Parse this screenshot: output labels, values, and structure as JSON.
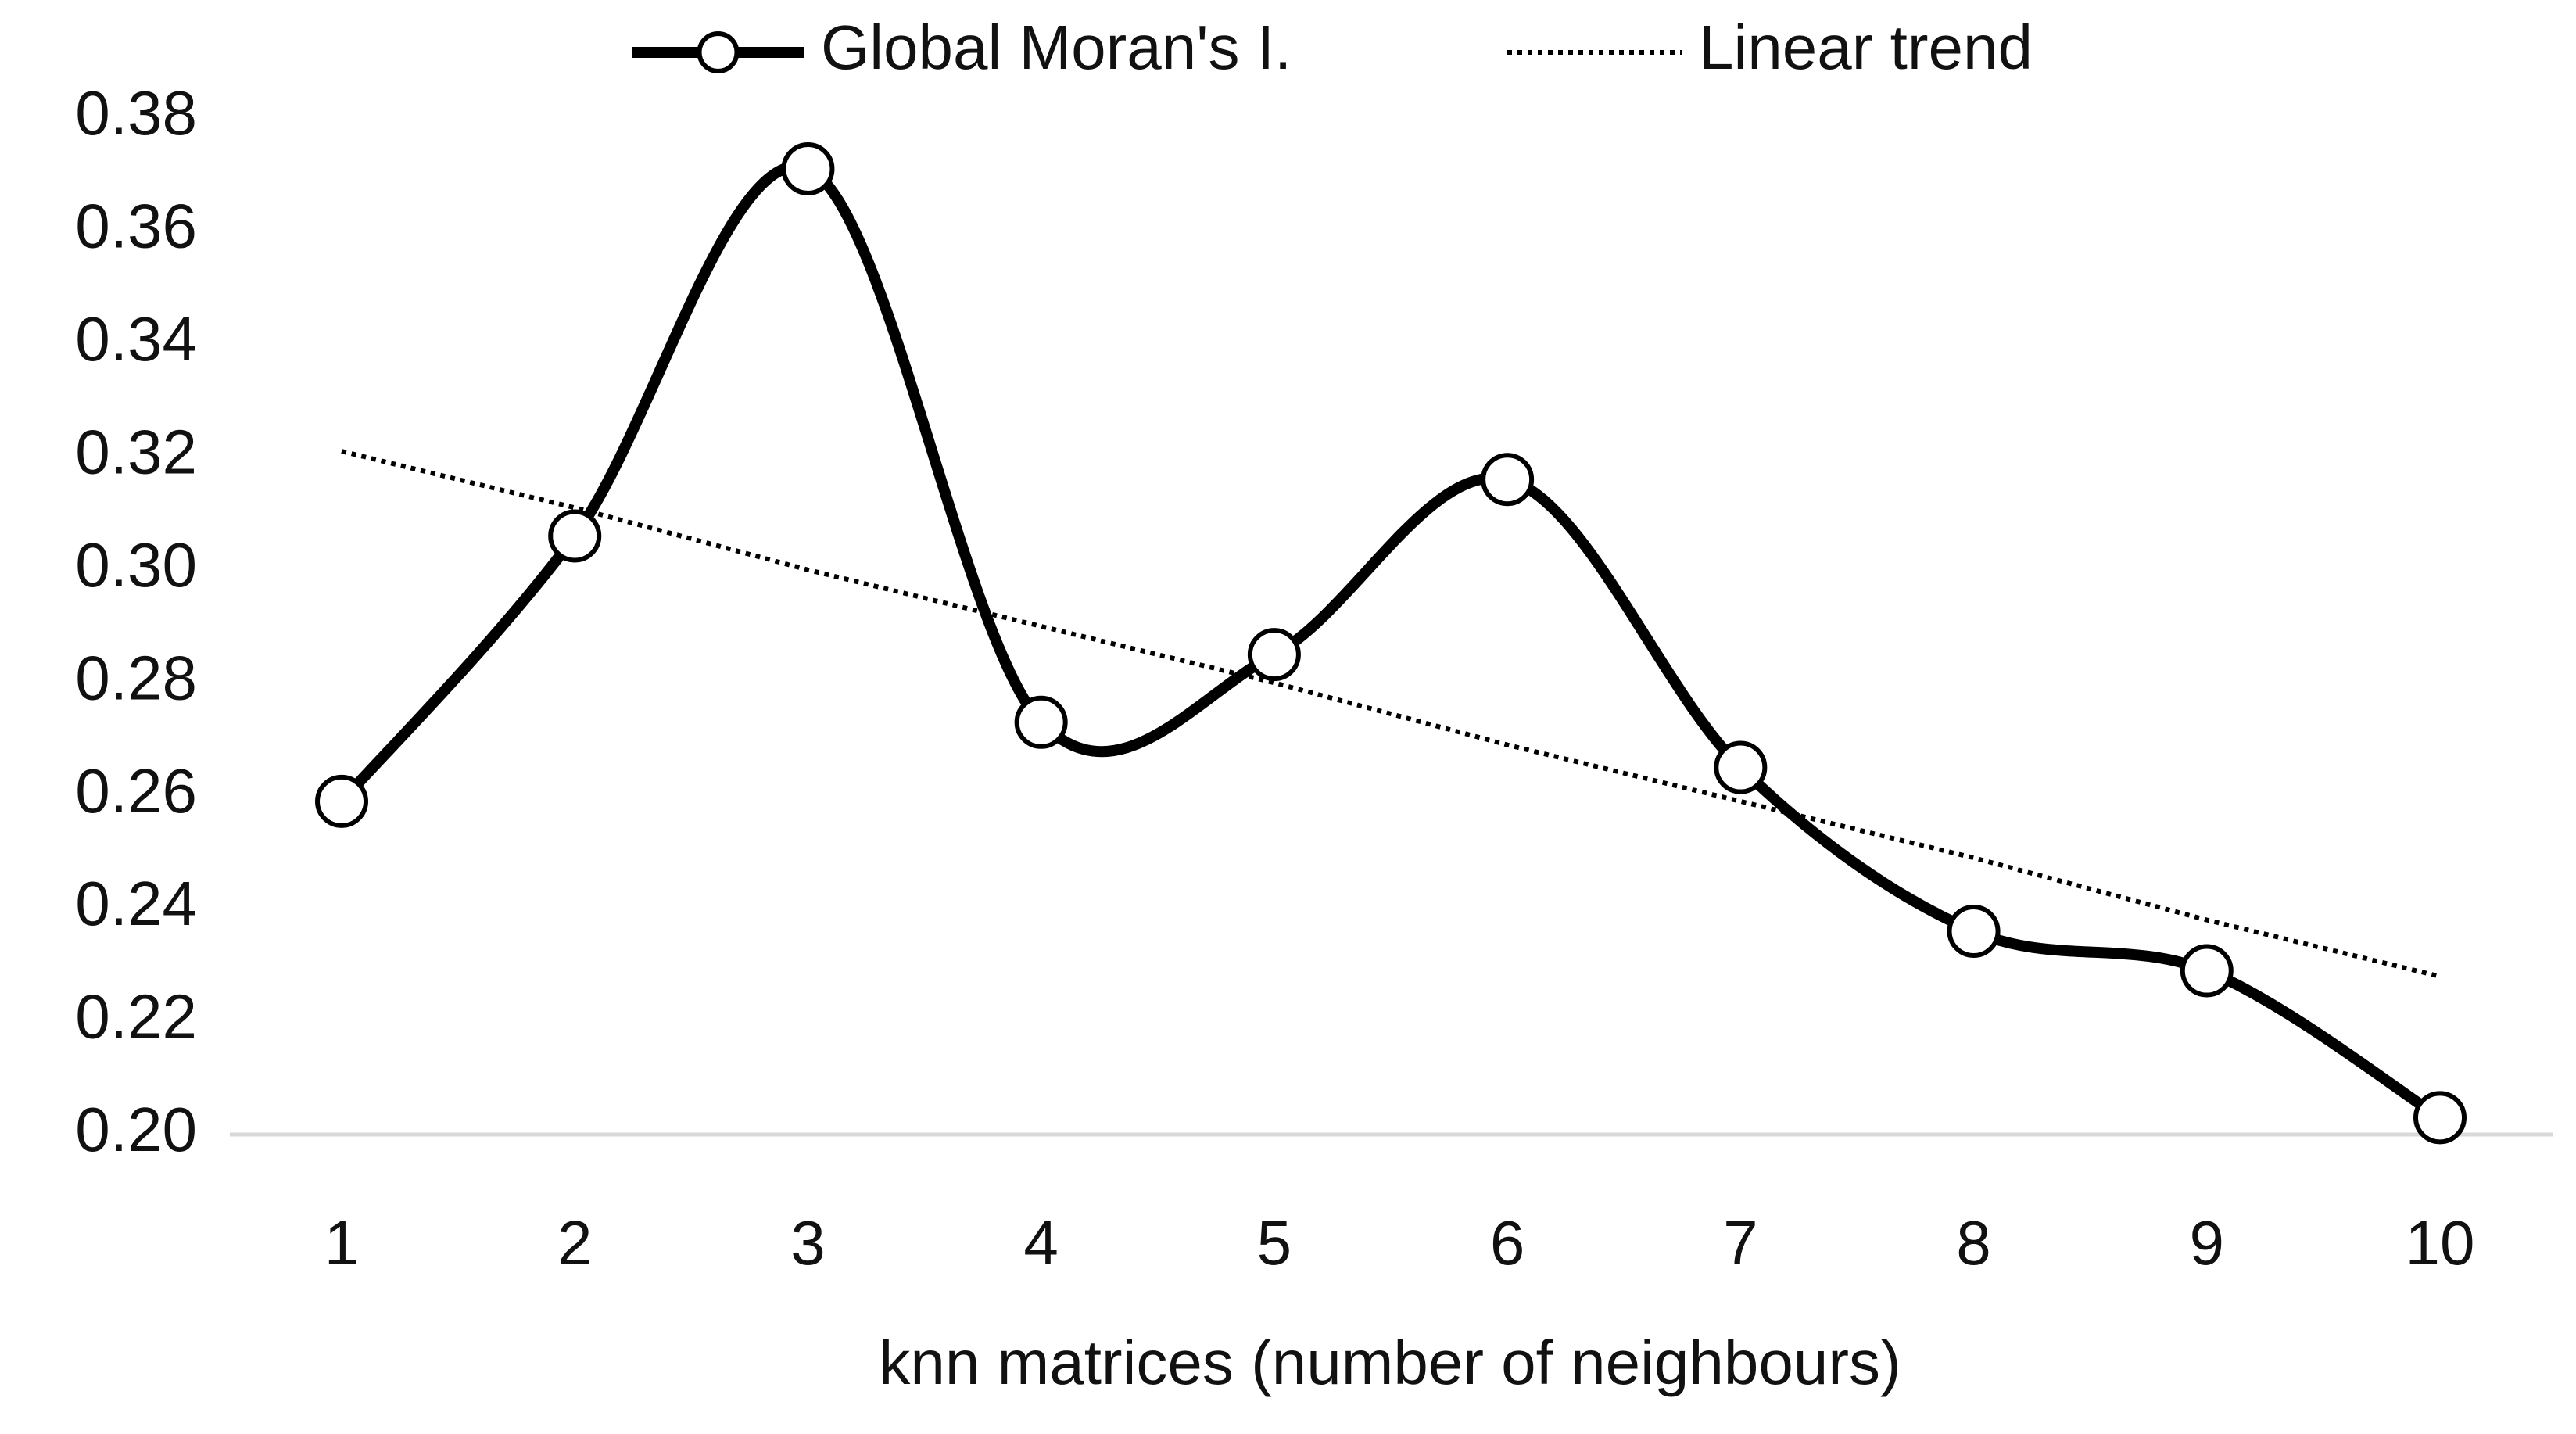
{
  "chart_data": {
    "type": "line",
    "x_label": "knn matrices (number of neighbours)",
    "categories": [
      "1",
      "2",
      "3",
      "4",
      "5",
      "6",
      "7",
      "8",
      "9",
      "10"
    ],
    "series": [
      {
        "name": "Global Moran's I.",
        "color": "#000000",
        "style": "smooth-markers",
        "values": [
          0.259,
          0.306,
          0.371,
          0.273,
          0.285,
          0.316,
          0.265,
          0.236,
          0.229,
          0.203
        ]
      },
      {
        "name": "Linear trend",
        "color": "#000000",
        "style": "dotted",
        "values": [
          0.321,
          0.311,
          0.3,
          0.29,
          0.28,
          0.269,
          0.259,
          0.249,
          0.238,
          0.228
        ]
      }
    ],
    "ylim": [
      0.2,
      0.38
    ],
    "yticks": [
      {
        "value": 0.2,
        "label": "0.20"
      },
      0.22,
      0.24,
      0.26,
      0.28,
      {
        "value": 0.3,
        "label": "0.30"
      },
      0.32,
      0.34,
      0.36,
      0.38
    ],
    "grid": false,
    "legend": "top"
  }
}
